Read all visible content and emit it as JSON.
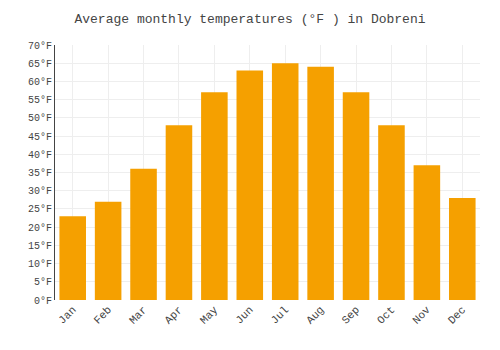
{
  "chart_data": {
    "type": "bar",
    "title": "Average monthly temperatures (°F ) in Dobreni",
    "categories": [
      "Jan",
      "Feb",
      "Mar",
      "Apr",
      "May",
      "Jun",
      "Jul",
      "Aug",
      "Sep",
      "Oct",
      "Nov",
      "Dec"
    ],
    "values": [
      23,
      27,
      36,
      48,
      57,
      63,
      65,
      64,
      57,
      48,
      37,
      28
    ],
    "color": "#F5A000",
    "ylim": [
      0,
      70
    ],
    "yticks": [
      {
        "value": 0,
        "label": "0°F"
      },
      {
        "value": 5,
        "label": "5°F"
      },
      {
        "value": 10,
        "label": "10°F"
      },
      {
        "value": 15,
        "label": "15°F"
      },
      {
        "value": 20,
        "label": "20°F"
      },
      {
        "value": 25,
        "label": "25°F"
      },
      {
        "value": 30,
        "label": "30°F"
      },
      {
        "value": 35,
        "label": "35°F"
      },
      {
        "value": 40,
        "label": "40°F"
      },
      {
        "value": 45,
        "label": "45°F"
      },
      {
        "value": 50,
        "label": "50°F"
      },
      {
        "value": 55,
        "label": "55°F"
      },
      {
        "value": 60,
        "label": "60°F"
      },
      {
        "value": 65,
        "label": "65°F"
      },
      {
        "value": 70,
        "label": "70°F"
      }
    ],
    "grid": true
  }
}
